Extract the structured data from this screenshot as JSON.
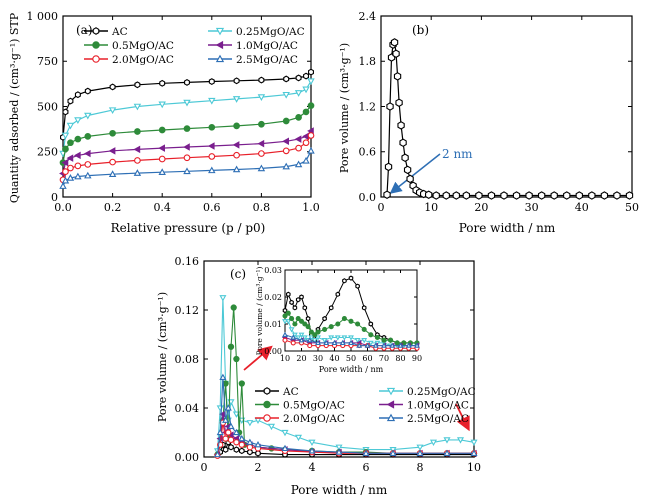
{
  "series_styles": {
    "AC": {
      "color": "#000000",
      "marker": "hex-open"
    },
    "0.25MgO/AC": {
      "color": "#4dc9d6",
      "marker": "tri-down-open"
    },
    "0.5MgO/AC": {
      "color": "#2e8b3a",
      "marker": "circle-filled"
    },
    "1.0MgO/AC": {
      "color": "#7a1f8e",
      "marker": "tri-left"
    },
    "2.0MgO/AC": {
      "color": "#e8202a",
      "marker": "circle-open"
    },
    "2.5MgO/AC": {
      "color": "#2e6fb5",
      "marker": "tri-up-open"
    }
  },
  "chart_data": [
    {
      "id": "a",
      "panel_label": "(a)",
      "type": "line",
      "xlabel": "Relative pressure (p / p0)",
      "ylabel": "Quantity adsorbed / (cm³·g⁻¹) STP",
      "xlim": [
        0,
        1.0
      ],
      "ylim": [
        0,
        1000
      ],
      "xticks": [
        0.0,
        0.2,
        0.4,
        0.6,
        0.8,
        1.0
      ],
      "xtick_labels": [
        "0.0",
        "0.2",
        "0.4",
        "0.6",
        "0.8",
        "1.0"
      ],
      "yticks": [
        0,
        250,
        500,
        750,
        1000
      ],
      "ytick_labels": [
        "0",
        "250",
        "500",
        "750",
        "1 000"
      ],
      "legend": [
        "AC",
        "0.25MgO/AC",
        "0.5MgO/AC",
        "1.0MgO/AC",
        "2.0MgO/AC",
        "2.5MgO/AC"
      ],
      "legend_position": "top",
      "series": [
        {
          "name": "AC",
          "x": [
            0.0,
            0.01,
            0.03,
            0.06,
            0.1,
            0.2,
            0.3,
            0.4,
            0.5,
            0.6,
            0.7,
            0.8,
            0.9,
            0.95,
            0.98,
            1.0
          ],
          "y": [
            330,
            470,
            530,
            565,
            585,
            608,
            620,
            628,
            633,
            638,
            642,
            646,
            652,
            658,
            668,
            690
          ]
        },
        {
          "name": "0.25MgO/AC",
          "x": [
            0.0,
            0.01,
            0.03,
            0.06,
            0.1,
            0.2,
            0.3,
            0.4,
            0.5,
            0.6,
            0.7,
            0.8,
            0.9,
            0.95,
            0.98,
            1.0
          ],
          "y": [
            240,
            340,
            395,
            425,
            450,
            480,
            500,
            512,
            522,
            532,
            542,
            552,
            565,
            575,
            595,
            640
          ]
        },
        {
          "name": "0.5MgO/AC",
          "x": [
            0.0,
            0.01,
            0.03,
            0.06,
            0.1,
            0.2,
            0.3,
            0.4,
            0.5,
            0.6,
            0.7,
            0.8,
            0.9,
            0.95,
            0.98,
            1.0
          ],
          "y": [
            190,
            265,
            300,
            320,
            335,
            352,
            362,
            370,
            378,
            385,
            393,
            402,
            420,
            440,
            470,
            505
          ]
        },
        {
          "name": "1.0MgO/AC",
          "x": [
            0.0,
            0.01,
            0.03,
            0.06,
            0.1,
            0.2,
            0.3,
            0.4,
            0.5,
            0.6,
            0.7,
            0.8,
            0.9,
            0.95,
            0.98,
            1.0
          ],
          "y": [
            130,
            190,
            215,
            230,
            240,
            255,
            263,
            270,
            276,
            282,
            288,
            295,
            308,
            320,
            335,
            365
          ]
        },
        {
          "name": "2.0MgO/AC",
          "x": [
            0.0,
            0.01,
            0.03,
            0.06,
            0.1,
            0.2,
            0.3,
            0.4,
            0.5,
            0.6,
            0.7,
            0.8,
            0.9,
            0.95,
            0.98,
            1.0
          ],
          "y": [
            95,
            140,
            160,
            172,
            180,
            193,
            202,
            210,
            217,
            224,
            231,
            240,
            255,
            270,
            300,
            340
          ]
        },
        {
          "name": "2.5MgO/AC",
          "x": [
            0.0,
            0.01,
            0.03,
            0.06,
            0.1,
            0.2,
            0.3,
            0.4,
            0.5,
            0.6,
            0.7,
            0.8,
            0.9,
            0.95,
            0.98,
            1.0
          ],
          "y": [
            60,
            90,
            105,
            113,
            118,
            126,
            132,
            137,
            142,
            147,
            152,
            158,
            168,
            180,
            200,
            255
          ]
        }
      ]
    },
    {
      "id": "b",
      "panel_label": "(b)",
      "type": "line",
      "xlabel": "Pore width / nm",
      "ylabel": "Pore volume / (cm³·g⁻¹)",
      "xlim": [
        0,
        50
      ],
      "ylim": [
        0,
        2.4
      ],
      "xticks": [
        0,
        10,
        20,
        30,
        40,
        50
      ],
      "xtick_labels": [
        "0",
        "10",
        "20",
        "30",
        "40",
        "50"
      ],
      "yticks": [
        0.0,
        0.6,
        1.2,
        1.8,
        2.4
      ],
      "ytick_labels": [
        "0.0",
        "0.6",
        "1.2",
        "1.8",
        "2.4"
      ],
      "annotation": "2 nm",
      "series": [
        {
          "name": "AC",
          "x": [
            1.2,
            1.5,
            1.8,
            2.1,
            2.4,
            2.7,
            3.0,
            3.3,
            3.6,
            4.0,
            4.4,
            4.8,
            5.3,
            5.8,
            6.4,
            7.0,
            7.7,
            8.5,
            9.5,
            11,
            13,
            15,
            17,
            19.5,
            22,
            24.5,
            27,
            29.5,
            32,
            34.5,
            37,
            39.5,
            42,
            44.5,
            47,
            49.5
          ],
          "y": [
            0.03,
            0.4,
            1.2,
            1.85,
            2.02,
            2.05,
            1.9,
            1.6,
            1.25,
            0.95,
            0.72,
            0.52,
            0.36,
            0.24,
            0.15,
            0.09,
            0.06,
            0.04,
            0.03,
            0.02,
            0.02,
            0.02,
            0.02,
            0.02,
            0.02,
            0.02,
            0.02,
            0.02,
            0.02,
            0.02,
            0.02,
            0.02,
            0.02,
            0.02,
            0.02,
            0.02
          ]
        }
      ]
    },
    {
      "id": "c",
      "panel_label": "(c)",
      "type": "line",
      "xlabel": "Pore width / nm",
      "ylabel": "Pore volume / (cm³·g⁻¹)",
      "xlim": [
        0,
        10
      ],
      "ylim": [
        0,
        0.16
      ],
      "xticks": [
        0,
        2,
        4,
        6,
        8,
        10
      ],
      "xtick_labels": [
        "0",
        "2",
        "4",
        "6",
        "8",
        "10"
      ],
      "yticks": [
        0.0,
        0.04,
        0.08,
        0.12,
        0.16
      ],
      "ytick_labels": [
        "0.00",
        "0.04",
        "0.08",
        "0.12",
        "0.16"
      ],
      "legend": [
        "AC",
        "0.25MgO/AC",
        "0.5MgO/AC",
        "1.0MgO/AC",
        "2.0MgO/AC",
        "2.5MgO/AC"
      ],
      "legend_position": "center-left",
      "series": [
        {
          "name": "AC",
          "x": [
            0.6,
            0.7,
            0.8,
            0.9,
            1.0,
            1.2,
            1.4,
            1.7,
            2.0,
            3.0,
            4.0,
            5.0,
            6.0,
            7.0,
            8.0,
            9.0,
            10.0
          ],
          "y": [
            0.004,
            0.01,
            0.006,
            0.012,
            0.008,
            0.006,
            0.005,
            0.004,
            0.003,
            0.002,
            0.002,
            0.002,
            0.002,
            0.002,
            0.002,
            0.002,
            0.002
          ]
        },
        {
          "name": "0.25MgO/AC",
          "x": [
            0.5,
            0.6,
            0.7,
            0.8,
            0.9,
            1.0,
            1.2,
            1.4,
            1.7,
            2.0,
            2.5,
            3.0,
            3.5,
            4.0,
            5.0,
            6.0,
            7.0,
            8.0,
            8.5,
            9.0,
            9.5,
            10.0
          ],
          "y": [
            0.005,
            0.04,
            0.13,
            0.06,
            0.03,
            0.045,
            0.035,
            0.03,
            0.028,
            0.03,
            0.025,
            0.02,
            0.016,
            0.012,
            0.008,
            0.006,
            0.006,
            0.008,
            0.012,
            0.014,
            0.014,
            0.012
          ]
        },
        {
          "name": "0.5MgO/AC",
          "x": [
            0.5,
            0.7,
            0.8,
            0.9,
            1.0,
            1.1,
            1.2,
            1.3,
            1.4,
            1.5,
            1.7,
            2.0,
            2.5,
            3.0,
            4.0,
            5.0,
            6.0,
            7.0,
            8.0,
            9.0,
            10.0
          ],
          "y": [
            0.002,
            0.03,
            0.06,
            0.015,
            0.09,
            0.122,
            0.08,
            0.02,
            0.06,
            0.01,
            0.01,
            0.008,
            0.007,
            0.006,
            0.005,
            0.004,
            0.004,
            0.003,
            0.003,
            0.003,
            0.003
          ]
        },
        {
          "name": "1.0MgO/AC",
          "x": [
            0.5,
            0.6,
            0.7,
            0.8,
            0.9,
            1.0,
            1.2,
            1.4,
            1.7,
            2.0,
            3.0,
            4.0,
            5.0,
            6.0,
            7.0,
            8.0,
            9.0,
            10.0
          ],
          "y": [
            0.002,
            0.015,
            0.035,
            0.02,
            0.025,
            0.018,
            0.015,
            0.012,
            0.01,
            0.008,
            0.006,
            0.004,
            0.004,
            0.003,
            0.003,
            0.003,
            0.003,
            0.003
          ]
        },
        {
          "name": "2.0MgO/AC",
          "x": [
            0.5,
            0.6,
            0.7,
            0.8,
            0.9,
            1.0,
            1.2,
            1.4,
            1.7,
            2.0,
            3.0,
            4.0,
            5.0,
            6.0,
            7.0,
            8.0,
            9.0,
            10.0
          ],
          "y": [
            0.001,
            0.01,
            0.028,
            0.015,
            0.02,
            0.014,
            0.012,
            0.01,
            0.008,
            0.007,
            0.005,
            0.004,
            0.003,
            0.003,
            0.003,
            0.003,
            0.003,
            0.003
          ]
        },
        {
          "name": "2.5MgO/AC",
          "x": [
            0.5,
            0.6,
            0.7,
            0.8,
            0.9,
            1.0,
            1.2,
            1.4,
            1.7,
            2.0,
            3.0,
            4.0,
            5.0,
            6.0,
            7.0,
            8.0,
            9.0,
            10.0
          ],
          "y": [
            0.002,
            0.02,
            0.065,
            0.03,
            0.04,
            0.025,
            0.02,
            0.015,
            0.012,
            0.01,
            0.007,
            0.005,
            0.004,
            0.003,
            0.003,
            0.003,
            0.003,
            0.003
          ]
        }
      ]
    },
    {
      "id": "c-inset",
      "type": "line",
      "xlabel": "Pore width / nm",
      "ylabel": "Pore volume / (cm³·g⁻¹)",
      "xlim": [
        10,
        90
      ],
      "ylim": [
        0,
        0.03
      ],
      "xticks": [
        10,
        20,
        30,
        40,
        50,
        60,
        70,
        80,
        90
      ],
      "xtick_labels": [
        "10",
        "20",
        "30",
        "40",
        "50",
        "60",
        "70",
        "80",
        "90"
      ],
      "yticks": [
        0.0,
        0.01,
        0.02,
        0.03
      ],
      "ytick_labels": [
        "0.00",
        "0.01",
        "0.02",
        "0.03"
      ],
      "series": [
        {
          "name": "AC",
          "x": [
            10,
            12,
            14,
            16,
            18,
            20,
            22,
            24,
            26,
            28,
            30,
            34,
            38,
            42,
            46,
            50,
            54,
            58,
            62,
            66,
            70,
            74,
            78,
            82,
            86,
            90
          ],
          "y": [
            0.015,
            0.021,
            0.018,
            0.016,
            0.019,
            0.02,
            0.016,
            0.012,
            0.006,
            0.004,
            0.008,
            0.012,
            0.016,
            0.021,
            0.026,
            0.027,
            0.024,
            0.016,
            0.01,
            0.006,
            0.005,
            0.004,
            0.003,
            0.003,
            0.003,
            0.003
          ]
        },
        {
          "name": "0.25MgO/AC",
          "x": [
            10,
            12,
            14,
            16,
            18,
            20,
            22,
            24,
            26,
            28,
            30,
            34,
            38,
            42,
            46,
            50,
            54,
            58,
            62,
            66,
            70,
            74,
            78,
            82,
            86,
            90
          ],
          "y": [
            0.011,
            0.011,
            0.008,
            0.006,
            0.005,
            0.006,
            0.005,
            0.004,
            0.005,
            0.004,
            0.005,
            0.004,
            0.005,
            0.005,
            0.005,
            0.005,
            0.004,
            0.004,
            0.003,
            0.003,
            0.003,
            0.002,
            0.002,
            0.002,
            0.002,
            0.002
          ]
        },
        {
          "name": "0.5MgO/AC",
          "x": [
            10,
            12,
            14,
            16,
            18,
            20,
            22,
            24,
            26,
            28,
            30,
            34,
            38,
            42,
            46,
            50,
            54,
            58,
            62,
            66,
            70,
            74,
            78,
            82,
            86,
            90
          ],
          "y": [
            0.013,
            0.014,
            0.012,
            0.01,
            0.012,
            0.011,
            0.01,
            0.009,
            0.007,
            0.006,
            0.007,
            0.008,
            0.009,
            0.01,
            0.012,
            0.011,
            0.01,
            0.008,
            0.006,
            0.005,
            0.004,
            0.004,
            0.003,
            0.003,
            0.003,
            0.003
          ]
        },
        {
          "name": "1.0MgO/AC",
          "x": [
            10,
            15,
            20,
            25,
            30,
            35,
            40,
            45,
            50,
            55,
            60,
            65,
            70,
            75,
            80,
            85,
            90
          ],
          "y": [
            0.005,
            0.004,
            0.004,
            0.003,
            0.003,
            0.003,
            0.003,
            0.003,
            0.003,
            0.003,
            0.002,
            0.002,
            0.002,
            0.002,
            0.002,
            0.002,
            0.002
          ]
        },
        {
          "name": "2.0MgO/AC",
          "x": [
            10,
            15,
            20,
            25,
            30,
            35,
            40,
            45,
            50,
            55,
            60,
            65,
            70,
            75,
            80,
            85,
            90
          ],
          "y": [
            0.004,
            0.003,
            0.003,
            0.002,
            0.002,
            0.002,
            0.002,
            0.002,
            0.002,
            0.002,
            0.002,
            0.001,
            0.001,
            0.001,
            0.001,
            0.001,
            0.001
          ]
        },
        {
          "name": "2.5MgO/AC",
          "x": [
            10,
            15,
            20,
            25,
            30,
            35,
            40,
            45,
            50,
            55,
            60,
            65,
            70,
            75,
            80,
            85,
            90
          ],
          "y": [
            0.006,
            0.005,
            0.004,
            0.004,
            0.003,
            0.003,
            0.003,
            0.003,
            0.003,
            0.002,
            0.002,
            0.002,
            0.002,
            0.002,
            0.002,
            0.002,
            0.002
          ]
        }
      ]
    }
  ]
}
